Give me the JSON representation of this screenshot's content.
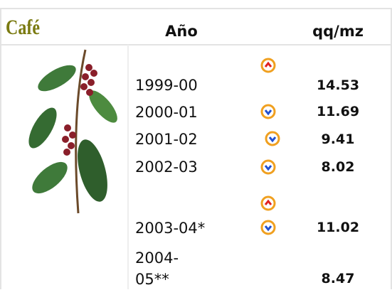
{
  "header": {
    "title": "Café",
    "year": "Año",
    "unit": "qq/mz"
  },
  "rows": [
    [
      "1999-00",
      "14.53"
    ],
    [
      "2000-01",
      "11.69"
    ],
    [
      "2001-02",
      "9.41"
    ],
    [
      "2002-03",
      "8.02"
    ],
    [
      "2003-04*",
      "11.02"
    ],
    [
      "2004-05**",
      "8.47"
    ]
  ]
}
